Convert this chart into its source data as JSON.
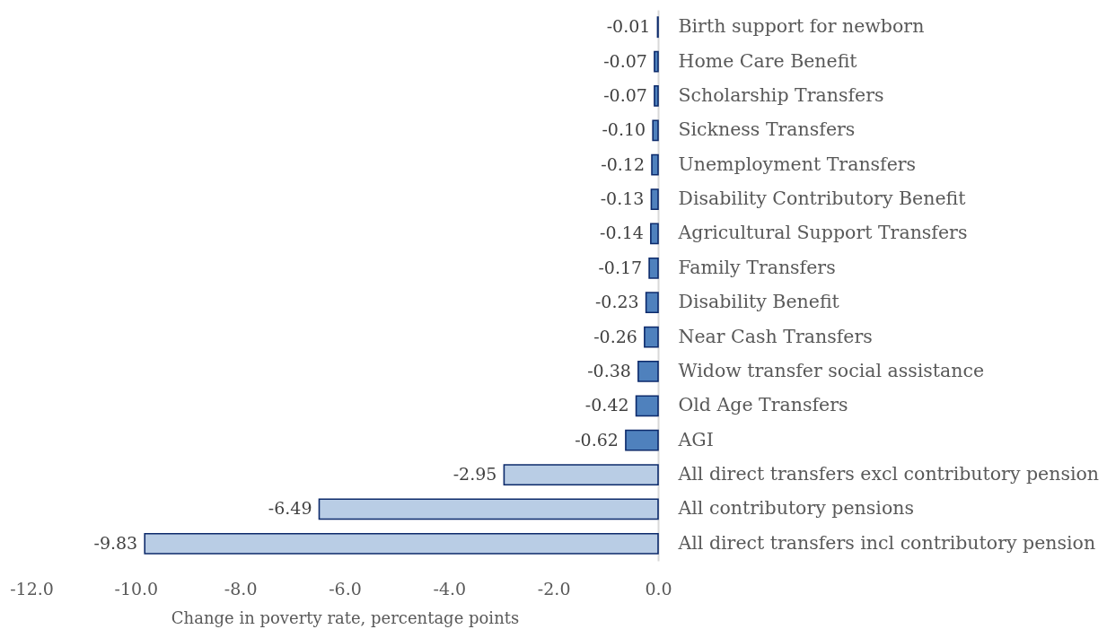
{
  "chart_data": {
    "type": "bar",
    "orientation": "horizontal",
    "xlabel": "Change in poverty rate, percentage points",
    "categories": [
      "Birth support for newborn",
      "Home Care Benefit",
      "Scholarship Transfers",
      "Sickness Transfers",
      "Unemployment Transfers",
      "Disability Contributory Benefit",
      "Agricultural Support Transfers",
      "Family Transfers",
      "Disability Benefit",
      "Near Cash Transfers",
      "Widow transfer social assistance",
      "Old Age Transfers",
      "AGI",
      "All direct transfers excl contributory pension",
      "All contributory pensions",
      "All direct transfers incl contributory pension"
    ],
    "values": [
      -0.01,
      -0.07,
      -0.07,
      -0.1,
      -0.12,
      -0.13,
      -0.14,
      -0.17,
      -0.23,
      -0.26,
      -0.38,
      -0.42,
      -0.62,
      -2.95,
      -6.49,
      -9.83
    ],
    "value_labels": [
      "-0.01",
      "-0.07",
      "-0.07",
      "-0.10",
      "-0.12",
      "-0.13",
      "-0.14",
      "-0.17",
      "-0.23",
      "-0.26",
      "-0.38",
      "-0.42",
      "-0.62",
      "-2.95",
      "-6.49",
      "-9.83"
    ],
    "colors": [
      "#4f81bd",
      "#4f81bd",
      "#4f81bd",
      "#4f81bd",
      "#4f81bd",
      "#4f81bd",
      "#4f81bd",
      "#4f81bd",
      "#4f81bd",
      "#4f81bd",
      "#4f81bd",
      "#4f81bd",
      "#4f81bd",
      "#b9cde5",
      "#b9cde5",
      "#b9cde5"
    ],
    "xlim": [
      -12,
      0
    ],
    "xticks": [
      {
        "value": -12,
        "label": "-12.0"
      },
      {
        "value": -10,
        "label": "-10.0"
      },
      {
        "value": -8,
        "label": "-8.0"
      },
      {
        "value": -6,
        "label": "-6.0"
      },
      {
        "value": -4,
        "label": "-4.0"
      },
      {
        "value": -2,
        "label": "-2.0"
      },
      {
        "value": 0,
        "label": "0.0"
      }
    ],
    "grid": false
  }
}
